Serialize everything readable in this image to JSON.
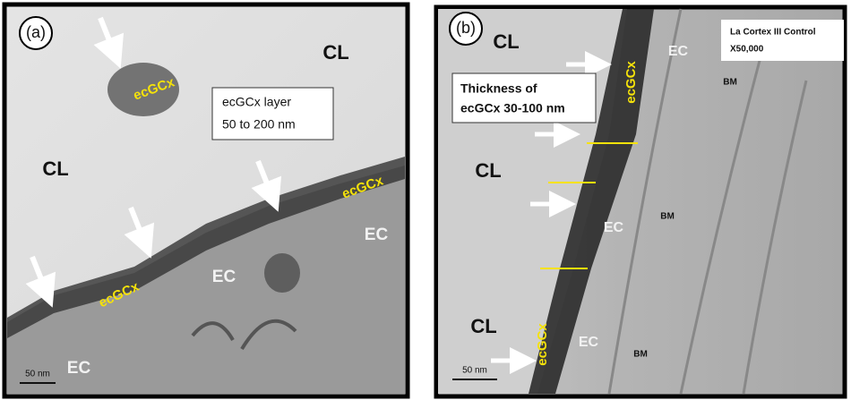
{
  "panels": [
    {
      "tag": "(a)",
      "labels": [
        "CL",
        "ecGCx",
        "ecGCx layer",
        "50 to 200 nm",
        "CL",
        "ecGCx",
        "EC",
        "EC",
        "ecGCx",
        "50 nm",
        "EC"
      ]
    },
    {
      "tag": "(b)",
      "labels": [
        "CL",
        "La Cortex III Control",
        "X50,000",
        "EC",
        "ecGCx",
        "Thickness of",
        "ecGCx 30-100 nm",
        "BM",
        "CL",
        "EC",
        "BM",
        "CL",
        "ecGCx",
        "EC",
        "BM",
        "50 nm"
      ]
    }
  ]
}
